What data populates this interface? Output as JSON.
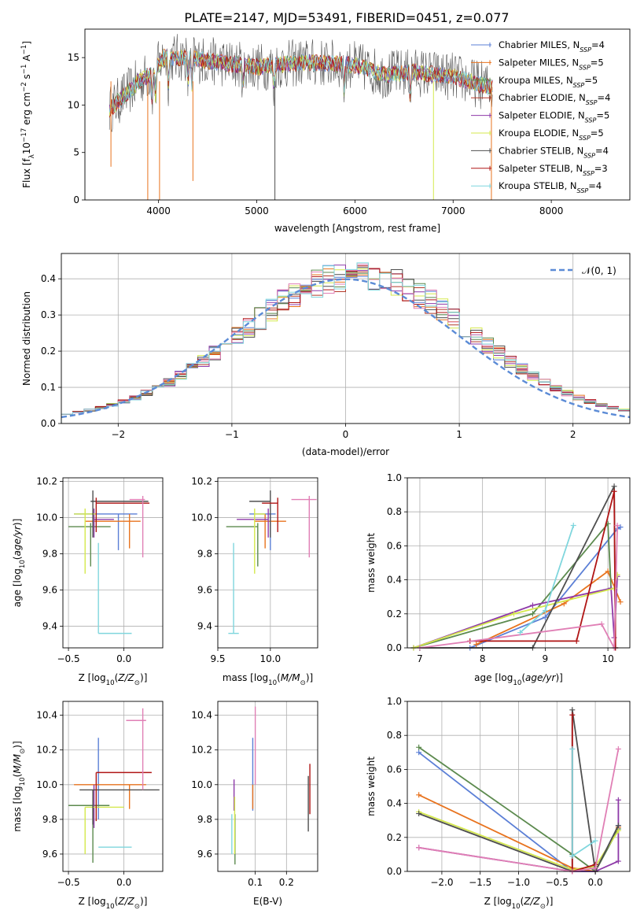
{
  "title": "PLATE=2147, MJD=53491, FIBERID=0451, z=0.077",
  "colors": {
    "chabrier_miles": "#5b7fd6",
    "salpeter_miles": "#e8731e",
    "kroupa_miles": "#5c8a4e",
    "chabrier_elodie": "#b33a2a",
    "salpeter_elodie": "#8e3aa8",
    "kroupa_elodie": "#d4e84d",
    "chabrier_stelib": "#4f4f4f",
    "salpeter_stelib": "#b01515",
    "kroupa_stelib": "#7fd6dd",
    "pink": "#e07fb5",
    "normal": "#5b8bd6"
  },
  "chart_data": [
    {
      "id": "spectrum",
      "type": "line",
      "xlabel": "wavelength [Angstrom, rest frame]",
      "ylabel": "Flux [f_λ10^{-17} erg cm^{-2} s^{-1} A^{-1}]",
      "xlim": [
        3250,
        8800
      ],
      "ylim": [
        0,
        18
      ],
      "xticks": [
        4000,
        5000,
        6000,
        7000,
        8000
      ],
      "yticks": [
        0,
        5,
        10,
        15
      ],
      "legend_loc": "upper-right",
      "legend": [
        {
          "prefix": "Chabrier MILES, N",
          "sub": "SSP",
          "suffix": "=4",
          "color": "#5b7fd6"
        },
        {
          "prefix": "Salpeter MILES, N",
          "sub": "SSP",
          "suffix": "=5",
          "color": "#e8731e"
        },
        {
          "prefix": "Kroupa MILES, N",
          "sub": "SSP",
          "suffix": "=5",
          "color": "#5c8a4e"
        },
        {
          "prefix": "Chabrier ELODIE, N",
          "sub": "SSP",
          "suffix": "=4",
          "color": "#b33a2a"
        },
        {
          "prefix": "Salpeter ELODIE, N",
          "sub": "SSP",
          "suffix": "=5",
          "color": "#8e3aa8"
        },
        {
          "prefix": "Kroupa ELODIE, N",
          "sub": "SSP",
          "suffix": "=5",
          "color": "#d4e84d"
        },
        {
          "prefix": "Chabrier STELIB, N",
          "sub": "SSP",
          "suffix": "=4",
          "color": "#4f4f4f"
        },
        {
          "prefix": "Salpeter STELIB, N",
          "sub": "SSP",
          "suffix": "=3",
          "color": "#b01515"
        },
        {
          "prefix": "Kroupa STELIB, N",
          "sub": "SSP",
          "suffix": "=4",
          "color": "#7fd6dd"
        }
      ],
      "continuum": {
        "x": [
          3500,
          3650,
          3800,
          3950,
          4050,
          4300,
          4600,
          5000,
          5500,
          6000,
          6300,
          6600,
          7000,
          7400
        ],
        "y": [
          9.5,
          11,
          12.5,
          13.5,
          15,
          15,
          14.5,
          14,
          14.5,
          14.2,
          13.2,
          13.5,
          13,
          11.8
        ]
      }
    },
    {
      "id": "residuals",
      "type": "histogram",
      "xlabel": "(data-model)/error",
      "ylabel": "Normed distribution",
      "xlim": [
        -2.5,
        2.5
      ],
      "ylim": [
        0,
        0.47
      ],
      "xticks": [
        -2,
        -1,
        0,
        1,
        2
      ],
      "yticks": [
        0.0,
        0.1,
        0.2,
        0.3,
        0.4
      ],
      "legend": "𝒩(0, 1)",
      "legend_loc": "upper-right",
      "bins": 50
    },
    {
      "id": "age_vs_Z",
      "type": "errorbar",
      "xlabel": "Z [log10(Z/Z⊙)]",
      "ylabel": "age [log10(age/yr)]",
      "xlim": [
        -0.55,
        0.35
      ],
      "ylim": [
        9.28,
        10.22
      ],
      "xticks": [
        -0.5,
        0.0
      ],
      "yticks": [
        9.4,
        9.6,
        9.8,
        10.0,
        10.2
      ],
      "points": [
        {
          "x": -0.05,
          "xe": [
            0.4,
            0.17
          ],
          "y": 10.02,
          "ye": [
            0.2,
            0.0
          ],
          "c": "#5b7fd6"
        },
        {
          "x": 0.05,
          "xe": [
            0.4,
            0.1
          ],
          "y": 9.98,
          "ye": [
            0.15,
            0.04
          ],
          "c": "#e8731e"
        },
        {
          "x": -0.3,
          "xe": [
            0.2,
            0.18
          ],
          "y": 9.95,
          "ye": [
            0.22,
            0.02
          ],
          "c": "#5c8a4e"
        },
        {
          "x": -0.27,
          "xe": [
            0.0,
            0.18
          ],
          "y": 9.99,
          "ye": [
            0.1,
            0.06
          ],
          "c": "#8e3aa8"
        },
        {
          "x": -0.35,
          "xe": [
            0.1,
            0.1
          ],
          "y": 10.02,
          "ye": [
            0.33,
            0.03
          ],
          "c": "#d4e84d"
        },
        {
          "x": -0.28,
          "xe": [
            0.02,
            0.5
          ],
          "y": 10.09,
          "ye": [
            0.2,
            0.06
          ],
          "c": "#4f4f4f"
        },
        {
          "x": -0.25,
          "xe": [
            0.0,
            0.48
          ],
          "y": 10.08,
          "ye": [
            0.16,
            0.03
          ],
          "c": "#b01515"
        },
        {
          "x": 0.17,
          "xe": [
            0.12,
            0.02
          ],
          "y": 10.1,
          "ye": [
            0.32,
            0.02
          ],
          "c": "#e07fb5"
        },
        {
          "x": -0.23,
          "xe": [
            0.0,
            0.3
          ],
          "y": 9.36,
          "ye": [
            0.0,
            0.5
          ],
          "c": "#7fd6dd"
        }
      ]
    },
    {
      "id": "age_vs_mass",
      "type": "errorbar",
      "xlabel": "mass [log10(M/M⊙)]",
      "ylabel": "",
      "xlim": [
        9.5,
        10.45
      ],
      "ylim": [
        9.28,
        10.22
      ],
      "xticks": [
        9.5,
        10.0
      ],
      "yticks": [
        9.4,
        9.6,
        9.8,
        10.0,
        10.2
      ],
      "points": [
        {
          "x": 10.0,
          "xe": [
            0.2,
            0.05
          ],
          "y": 10.02,
          "ye": [
            0.2,
            0.0
          ],
          "c": "#5b7fd6"
        },
        {
          "x": 9.95,
          "xe": [
            0.1,
            0.2
          ],
          "y": 9.98,
          "ye": [
            0.15,
            0.04
          ],
          "c": "#e8731e"
        },
        {
          "x": 9.88,
          "xe": [
            0.3,
            0.0
          ],
          "y": 9.95,
          "ye": [
            0.22,
            0.02
          ],
          "c": "#5c8a4e"
        },
        {
          "x": 9.98,
          "xe": [
            0.3,
            0.0
          ],
          "y": 9.99,
          "ye": [
            0.1,
            0.06
          ],
          "c": "#8e3aa8"
        },
        {
          "x": 9.85,
          "xe": [
            0.0,
            0.1
          ],
          "y": 10.02,
          "ye": [
            0.33,
            0.03
          ],
          "c": "#d4e84d"
        },
        {
          "x": 10.0,
          "xe": [
            0.2,
            0.0
          ],
          "y": 10.09,
          "ye": [
            0.2,
            0.06
          ],
          "c": "#4f4f4f"
        },
        {
          "x": 10.07,
          "xe": [
            0.15,
            0.0
          ],
          "y": 10.08,
          "ye": [
            0.16,
            0.03
          ],
          "c": "#b01515"
        },
        {
          "x": 10.37,
          "xe": [
            0.17,
            0.07
          ],
          "y": 10.1,
          "ye": [
            0.32,
            0.02
          ],
          "c": "#e07fb5"
        },
        {
          "x": 9.65,
          "xe": [
            0.05,
            0.05
          ],
          "y": 9.36,
          "ye": [
            0.0,
            0.5
          ],
          "c": "#7fd6dd"
        }
      ]
    },
    {
      "id": "weight_vs_age",
      "type": "line",
      "xlabel": "age [log10(age/yr)]",
      "ylabel": "mass weight",
      "xlim": [
        6.8,
        10.35
      ],
      "ylim": [
        0,
        1.0
      ],
      "xticks": [
        7,
        8,
        9,
        10
      ],
      "yticks": [
        0.0,
        0.2,
        0.4,
        0.6,
        0.8,
        1.0
      ],
      "series": [
        {
          "c": "#5b7fd6",
          "x": [
            7.8,
            9.0,
            10.15,
            10.2
          ],
          "y": [
            0.0,
            0.18,
            0.7,
            0.71
          ]
        },
        {
          "c": "#e8731e",
          "x": [
            7.9,
            9.3,
            10.0,
            10.2
          ],
          "y": [
            0.02,
            0.26,
            0.45,
            0.27
          ]
        },
        {
          "c": "#5c8a4e",
          "x": [
            6.9,
            8.8,
            10.0,
            10.05
          ],
          "y": [
            0.0,
            0.2,
            0.73,
            0.35
          ]
        },
        {
          "c": "#8e3aa8",
          "x": [
            6.9,
            8.8,
            10.05,
            10.1,
            10.15
          ],
          "y": [
            0.0,
            0.25,
            0.35,
            0.06,
            0.42
          ]
        },
        {
          "c": "#d4e84d",
          "x": [
            6.9,
            8.5,
            10.1,
            10.15
          ],
          "y": [
            0.0,
            0.2,
            0.35,
            0.43
          ]
        },
        {
          "c": "#4f4f4f",
          "x": [
            7.0,
            8.8,
            10.1,
            10.12
          ],
          "y": [
            0.0,
            0.0,
            0.95,
            0.0
          ]
        },
        {
          "c": "#b01515",
          "x": [
            7.8,
            9.5,
            10.1,
            10.12
          ],
          "y": [
            0.04,
            0.04,
            0.92,
            0.0
          ]
        },
        {
          "c": "#e07fb5",
          "x": [
            7.0,
            9.9,
            10.1,
            10.15
          ],
          "y": [
            0.0,
            0.14,
            0.0,
            0.72
          ]
        },
        {
          "c": "#7fd6dd",
          "x": [
            8.6,
            9.0,
            9.45
          ],
          "y": [
            0.09,
            0.22,
            0.72
          ]
        }
      ]
    },
    {
      "id": "mass_vs_Z",
      "type": "errorbar",
      "xlabel": "Z [log10(Z/Z⊙)]",
      "ylabel": "mass [log10(M/M⊙)]",
      "xlim": [
        -0.55,
        0.35
      ],
      "ylim": [
        9.5,
        10.48
      ],
      "xticks": [
        -0.5,
        0.0
      ],
      "yticks": [
        9.6,
        9.8,
        10.0,
        10.2,
        10.4
      ],
      "points": [
        {
          "x": -0.23,
          "xe": [
            0.0,
            0.0
          ],
          "y": 10.0,
          "ye": [
            0.2,
            0.27
          ],
          "c": "#5b7fd6"
        },
        {
          "x": 0.05,
          "xe": [
            0.5,
            0.15
          ],
          "y": 10.0,
          "ye": [
            0.14,
            0.0
          ],
          "c": "#e8731e"
        },
        {
          "x": -0.28,
          "xe": [
            0.22,
            0.15
          ],
          "y": 9.88,
          "ye": [
            0.33,
            0.0
          ],
          "c": "#5c8a4e"
        },
        {
          "x": -0.27,
          "xe": [
            0.0,
            0.0
          ],
          "y": 9.9,
          "ye": [
            0.15,
            0.1
          ],
          "c": "#8e3aa8"
        },
        {
          "x": -0.35,
          "xe": [
            0.0,
            0.35
          ],
          "y": 9.87,
          "ye": [
            0.27,
            0.0
          ],
          "c": "#d4e84d"
        },
        {
          "x": -0.28,
          "xe": [
            0.12,
            0.6
          ],
          "y": 9.97,
          "ye": [
            0.2,
            0.0
          ],
          "c": "#4f4f4f"
        },
        {
          "x": -0.25,
          "xe": [
            0.0,
            0.5
          ],
          "y": 10.07,
          "ye": [
            0.28,
            0.0
          ],
          "c": "#b01515"
        },
        {
          "x": 0.17,
          "xe": [
            0.15,
            0.03
          ],
          "y": 10.37,
          "ye": [
            0.4,
            0.07
          ],
          "c": "#e07fb5"
        },
        {
          "x": -0.23,
          "xe": [
            0.0,
            0.3
          ],
          "y": 9.64,
          "ye": [
            0.0,
            0.0
          ],
          "c": "#7fd6dd"
        }
      ]
    },
    {
      "id": "mass_vs_ebv",
      "type": "errorbar",
      "xlabel": "E(B-V)",
      "ylabel": "",
      "xlim": [
        -0.02,
        0.3
      ],
      "ylim": [
        9.5,
        10.48
      ],
      "xticks": [
        0.1,
        0.2
      ],
      "yticks": [
        9.6,
        9.8,
        10.0,
        10.2,
        10.4
      ],
      "points": [
        {
          "x": 0.092,
          "xe": [
            0,
            0
          ],
          "y": 10.0,
          "ye": [
            0.15,
            0.27
          ],
          "c": "#5b7fd6"
        },
        {
          "x": 0.092,
          "xe": [
            0,
            0
          ],
          "y": 10.0,
          "ye": [
            0.14,
            0.0
          ],
          "c": "#e8731e"
        },
        {
          "x": 0.035,
          "xe": [
            0,
            0
          ],
          "y": 9.58,
          "ye": [
            0.04,
            0.25
          ],
          "c": "#5c8a4e"
        },
        {
          "x": 0.032,
          "xe": [
            0,
            0
          ],
          "y": 9.9,
          "ye": [
            0.05,
            0.13
          ],
          "c": "#8e3aa8"
        },
        {
          "x": 0.034,
          "xe": [
            0,
            0
          ],
          "y": 9.75,
          "ye": [
            0.15,
            0.18
          ],
          "c": "#d4e84d"
        },
        {
          "x": 0.27,
          "xe": [
            0,
            0
          ],
          "y": 9.9,
          "ye": [
            0.17,
            0.15
          ],
          "c": "#4f4f4f"
        },
        {
          "x": 0.275,
          "xe": [
            0,
            0
          ],
          "y": 10.0,
          "ye": [
            0.17,
            0.12
          ],
          "c": "#b01515"
        },
        {
          "x": 0.1,
          "xe": [
            0,
            0
          ],
          "y": 10.2,
          "ye": [
            0.2,
            0.25
          ],
          "c": "#e07fb5"
        },
        {
          "x": 0.025,
          "xe": [
            0,
            0
          ],
          "y": 9.7,
          "ye": [
            0.1,
            0.13
          ],
          "c": "#7fd6dd"
        }
      ]
    },
    {
      "id": "weight_vs_Z",
      "type": "line",
      "xlabel": "Z [log10(Z/Z⊙)]",
      "ylabel": "mass weight",
      "xlim": [
        -2.45,
        0.45
      ],
      "ylim": [
        0,
        1.0
      ],
      "xticks": [
        -2.0,
        -1.5,
        -1.0,
        -0.5,
        0.0
      ],
      "yticks": [
        0.0,
        0.2,
        0.4,
        0.6,
        0.8,
        1.0
      ],
      "series": [
        {
          "c": "#5b7fd6",
          "x": [
            -2.3,
            -0.3,
            0.0,
            0.3
          ],
          "y": [
            0.7,
            0.0,
            0.0,
            0.27
          ]
        },
        {
          "c": "#e8731e",
          "x": [
            -2.3,
            -0.3,
            0.0,
            0.3
          ],
          "y": [
            0.45,
            0.02,
            0.0,
            0.26
          ]
        },
        {
          "c": "#5c8a4e",
          "x": [
            -2.3,
            -0.3,
            0.0,
            0.3
          ],
          "y": [
            0.73,
            0.1,
            0.0,
            0.25
          ]
        },
        {
          "c": "#8e3aa8",
          "x": [
            -2.3,
            -0.3,
            0.0,
            0.3,
            0.3
          ],
          "y": [
            0.14,
            0.0,
            0.0,
            0.06,
            0.42
          ]
        },
        {
          "c": "#d4e84d",
          "x": [
            -2.3,
            -0.3,
            0.0,
            0.3
          ],
          "y": [
            0.35,
            0.01,
            0.03,
            0.24
          ]
        },
        {
          "c": "#4f4f4f",
          "x": [
            -2.3,
            -0.3,
            -0.3,
            0.0,
            0.3
          ],
          "y": [
            0.34,
            0.0,
            0.95,
            0.0,
            0.27
          ]
        },
        {
          "c": "#b01515",
          "x": [
            -0.3,
            -0.3,
            0.0
          ],
          "y": [
            0.92,
            0.0,
            0.04
          ]
        },
        {
          "c": "#e07fb5",
          "x": [
            -2.3,
            -0.3,
            0.0,
            0.3
          ],
          "y": [
            0.14,
            0.0,
            0.02,
            0.72
          ]
        },
        {
          "c": "#7fd6dd",
          "x": [
            -0.3,
            -0.3,
            0.0
          ],
          "y": [
            0.72,
            0.09,
            0.18
          ]
        }
      ]
    }
  ]
}
